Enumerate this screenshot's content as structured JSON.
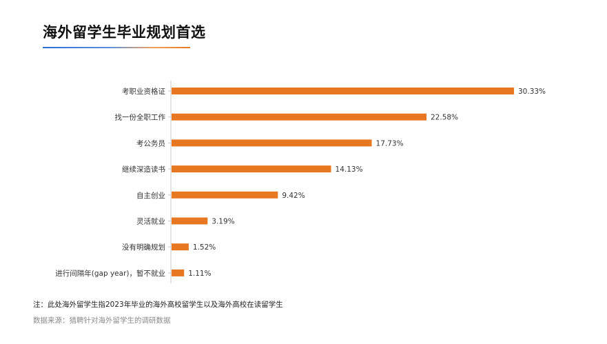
{
  "page": {
    "title": "海外留学生毕业规划首选",
    "footnote": "注：此处海外留学生指2023年毕业的海外高校留学生以及海外高校在读留学生",
    "source": "数据来源：猎聘针对海外留学生的调研数据"
  },
  "colors": {
    "bar": "#e87722",
    "axis": "#c8c8c8"
  },
  "chart_data": {
    "type": "bar",
    "orientation": "horizontal",
    "title": "",
    "xlabel": "",
    "ylabel": "",
    "xlim": [
      0,
      30.33
    ],
    "grid": false,
    "legend": "none",
    "categories": [
      "考职业资格证",
      "找一份全职工作",
      "考公务员",
      "继续深造读书",
      "自主创业",
      "灵活就业",
      "没有明确规划",
      "进行间隔年(gap year)，暂不就业"
    ],
    "values": [
      30.33,
      22.58,
      17.73,
      14.13,
      9.42,
      3.19,
      1.52,
      1.11
    ],
    "value_labels": [
      "30.33%",
      "22.58%",
      "17.73%",
      "14.13%",
      "9.42%",
      "3.19%",
      "1.52%",
      "1.11%"
    ]
  }
}
